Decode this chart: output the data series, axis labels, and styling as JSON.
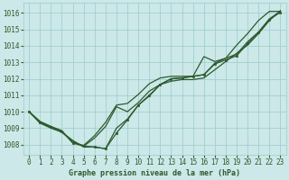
{
  "bg_color": "#cce8e8",
  "grid_color": "#99cccc",
  "line_color": "#2d5a2d",
  "title": "Graphe pression niveau de la mer (hPa)",
  "xlim": [
    -0.5,
    23.5
  ],
  "ylim": [
    1007.4,
    1016.6
  ],
  "yticks": [
    1008,
    1009,
    1010,
    1011,
    1012,
    1013,
    1014,
    1015,
    1016
  ],
  "xticks": [
    0,
    1,
    2,
    3,
    4,
    5,
    6,
    7,
    8,
    9,
    10,
    11,
    12,
    13,
    14,
    15,
    16,
    17,
    18,
    19,
    20,
    21,
    22,
    23
  ],
  "line1_x": [
    0,
    1,
    2,
    3,
    4,
    5,
    6,
    7,
    8,
    9,
    10,
    11,
    12,
    13,
    14,
    15,
    16,
    17,
    18,
    19,
    20,
    21,
    22,
    23
  ],
  "line1_y": [
    1010.0,
    1009.4,
    1009.1,
    1008.85,
    1008.1,
    1007.95,
    1008.55,
    1009.35,
    1010.4,
    1010.5,
    1011.05,
    1011.7,
    1012.05,
    1012.15,
    1012.15,
    1012.15,
    1012.25,
    1012.95,
    1013.25,
    1013.5,
    1014.25,
    1014.85,
    1015.65,
    1016.1
  ],
  "line2_x": [
    0,
    1,
    2,
    3,
    4,
    5,
    6,
    7,
    8,
    9,
    10,
    11,
    12,
    13,
    14,
    15,
    16,
    17,
    18,
    19,
    20,
    21,
    22,
    23
  ],
  "line2_y": [
    1010.0,
    1009.4,
    1009.1,
    1008.75,
    1008.2,
    1007.9,
    1008.4,
    1009.1,
    1010.3,
    1010.0,
    1010.55,
    1011.25,
    1011.65,
    1011.85,
    1011.95,
    1011.95,
    1012.05,
    1012.55,
    1013.05,
    1013.55,
    1014.05,
    1014.75,
    1015.55,
    1016.15
  ],
  "line3_x": [
    0,
    1,
    2,
    3,
    4,
    5,
    6,
    7,
    8,
    9,
    10,
    11,
    12,
    13,
    14,
    15,
    16,
    17,
    18,
    19,
    20,
    21,
    22,
    23
  ],
  "line3_y": [
    1010.0,
    1009.3,
    1009.0,
    1008.75,
    1008.25,
    1007.85,
    1007.85,
    1007.75,
    1009.0,
    1009.55,
    1010.4,
    1010.95,
    1011.65,
    1012.0,
    1012.05,
    1012.15,
    1013.35,
    1013.05,
    1013.25,
    1014.05,
    1014.75,
    1015.55,
    1016.1,
    1016.1
  ],
  "dotted_x": [
    0,
    1,
    2,
    3,
    4,
    5,
    6,
    7,
    8,
    9,
    10,
    11,
    12,
    13,
    14,
    15,
    16,
    17,
    18,
    19,
    20,
    21,
    22,
    23
  ],
  "dotted_y": [
    1010.0,
    1009.35,
    1009.05,
    1008.8,
    1008.1,
    1007.9,
    1007.85,
    1007.75,
    1008.7,
    1009.5,
    1010.4,
    1011.0,
    1011.65,
    1012.0,
    1012.05,
    1012.15,
    1012.25,
    1012.9,
    1013.15,
    1013.4,
    1014.15,
    1014.8,
    1015.6,
    1016.05
  ],
  "tick_fontsize": 5.5,
  "title_fontsize": 6.0
}
